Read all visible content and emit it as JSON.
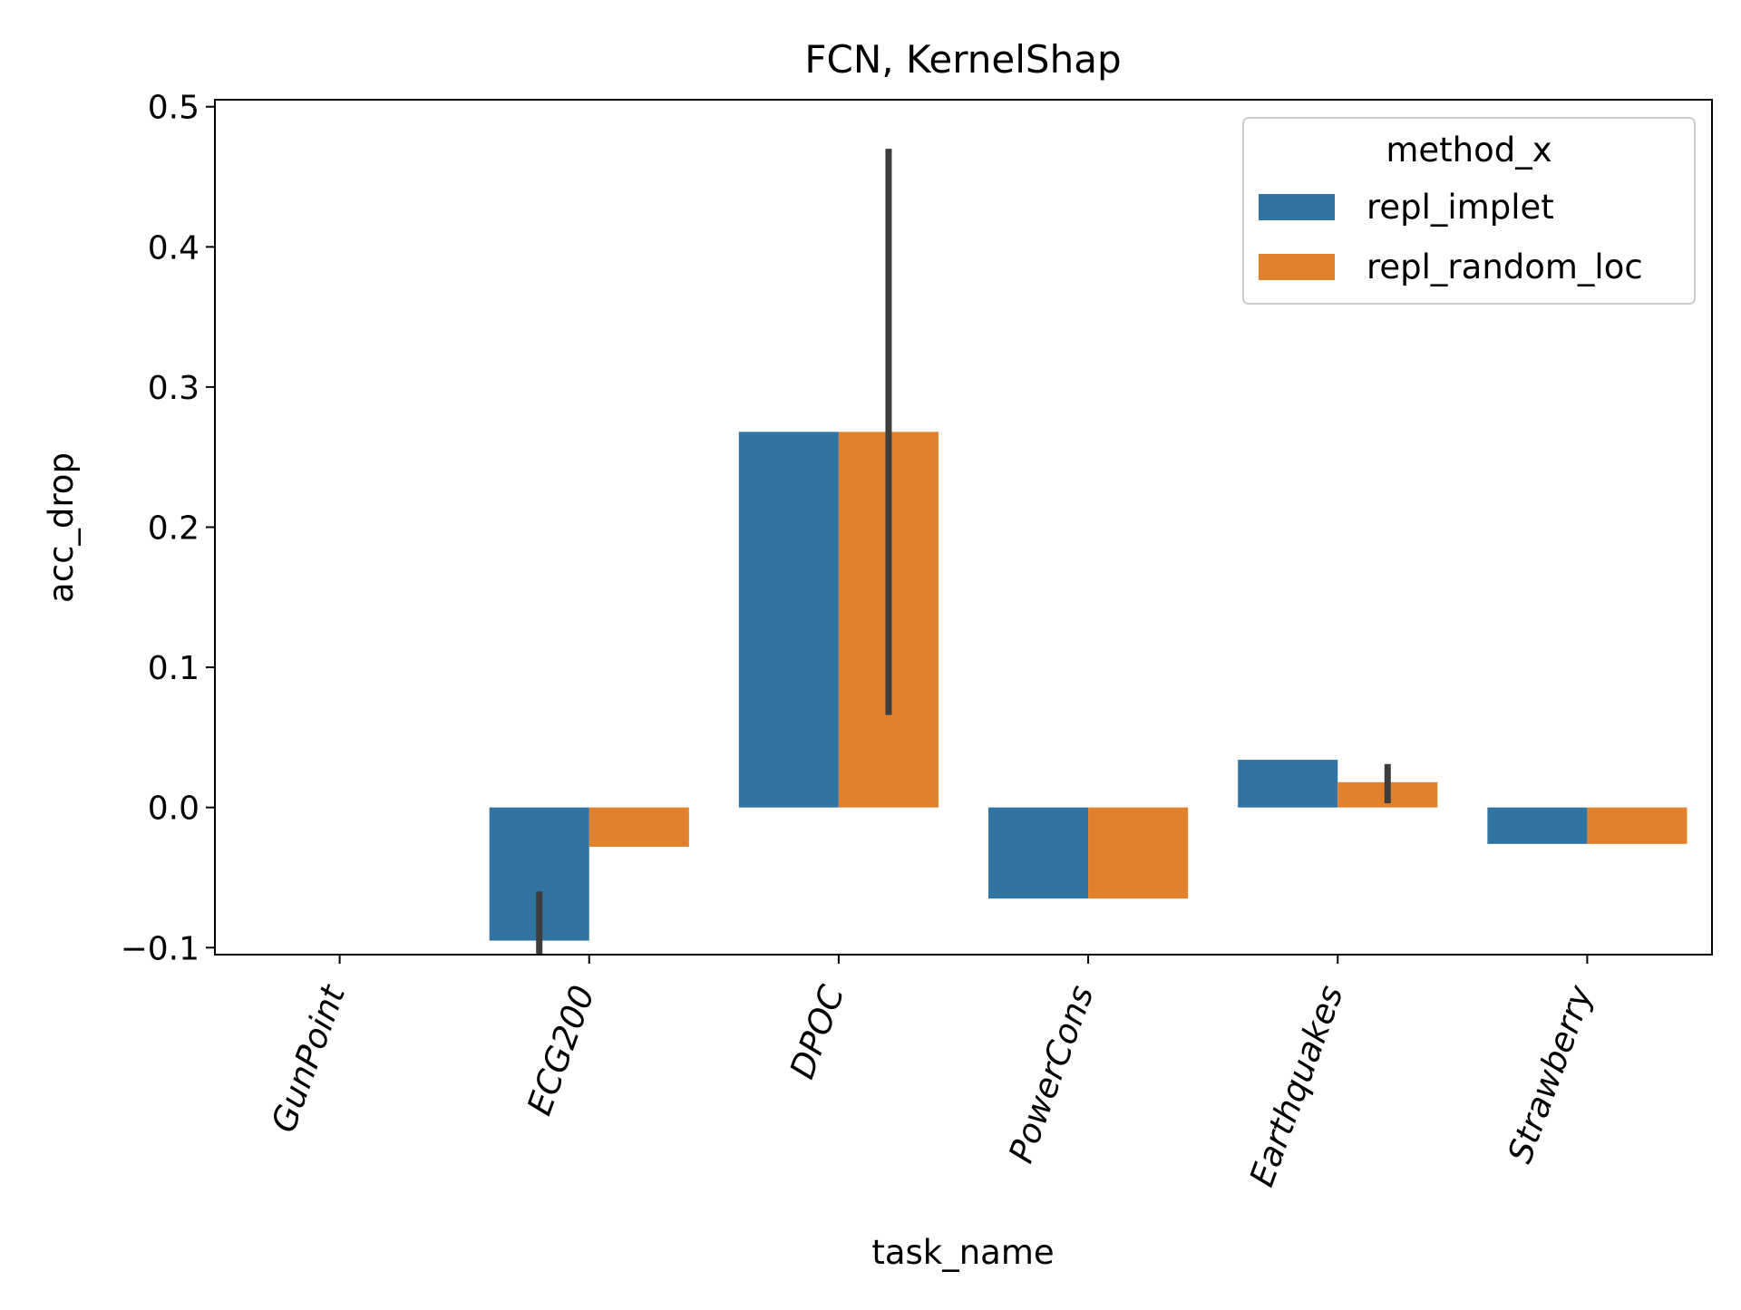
{
  "chart_data": {
    "type": "bar",
    "title": "FCN, KernelShap",
    "xlabel": "task_name",
    "ylabel": "acc_drop",
    "categories": [
      "GunPoint",
      "ECG200",
      "DPOC",
      "PowerCons",
      "Earthquakes",
      "Strawberry"
    ],
    "ylim": [
      -0.105,
      0.505
    ],
    "yticks": [
      -0.1,
      0.0,
      0.1,
      0.2,
      0.3,
      0.4,
      0.5
    ],
    "ytick_labels": [
      "−0.1",
      "0.0",
      "0.1",
      "0.2",
      "0.3",
      "0.4",
      "0.5"
    ],
    "grid": false,
    "legend": {
      "title": "method_x",
      "position": "top-right"
    },
    "series": [
      {
        "name": "repl_implet",
        "color": "#3274a1",
        "values": [
          0.0,
          -0.095,
          0.268,
          -0.065,
          0.034,
          -0.026
        ],
        "error": [
          null,
          [
            -0.106,
            -0.06
          ],
          null,
          null,
          null,
          null
        ]
      },
      {
        "name": "repl_random_loc",
        "color": "#e1812c",
        "values": [
          0.0,
          -0.028,
          0.268,
          -0.065,
          0.018,
          -0.026
        ],
        "error": [
          null,
          null,
          [
            0.066,
            0.47
          ],
          null,
          [
            0.003,
            0.031
          ],
          null
        ]
      }
    ]
  }
}
